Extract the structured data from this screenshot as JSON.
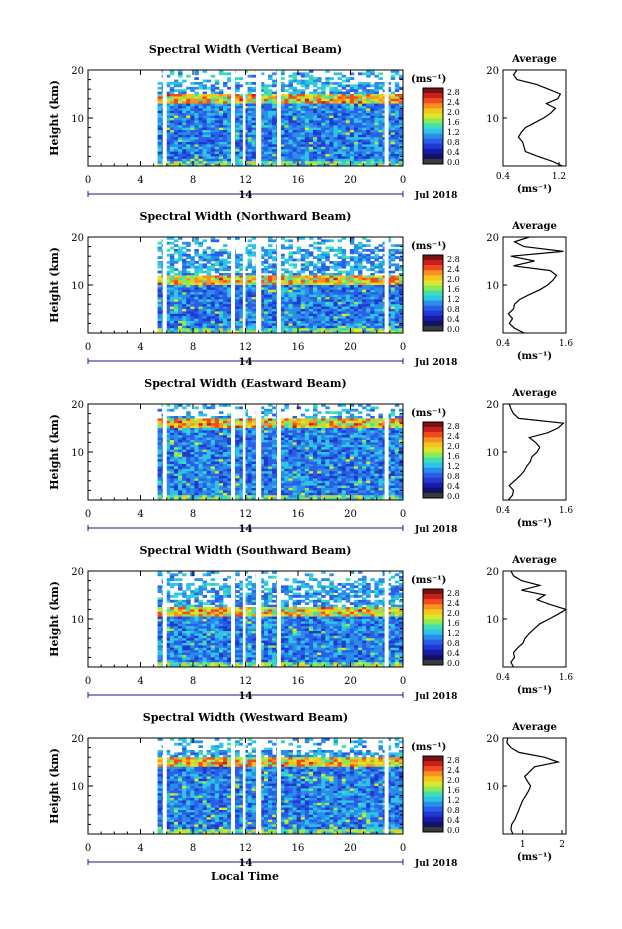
{
  "common": {
    "y_axis_label": "Height (km)",
    "x_axis_label": "Local Time",
    "date_label": "Jul 2018",
    "day_label": "14",
    "unit_label": "(ms⁻¹)",
    "average_title": "Average"
  },
  "colorbar": {
    "ticks": [
      "2.8",
      "2.4",
      "2.0",
      "1.6",
      "1.2",
      "0.8",
      "0.4",
      "0.0"
    ],
    "colors": [
      "#7a1010",
      "#c81e1e",
      "#f04a1e",
      "#f7901e",
      "#f5c51e",
      "#d9e82a",
      "#8ee85a",
      "#3fe0b0",
      "#2ec4e8",
      "#2a8ee8",
      "#2a5ee8",
      "#1e3ad0",
      "#1a1aa8",
      "#121266",
      "#3a3a3a"
    ]
  },
  "chart_data": [
    {
      "type": "heatmap",
      "title": "Spectral Width (Vertical Beam)",
      "x_ticks": [
        "0",
        "4",
        "8",
        "12",
        "16",
        "20",
        "0"
      ],
      "xlim": [
        0,
        24
      ],
      "y_ticks": [
        "20",
        "10"
      ],
      "ylim": [
        0,
        20
      ],
      "data_start_hour": 5.3,
      "gaps_hours": [
        [
          5.7,
          6.0
        ],
        [
          10.9,
          11.2
        ],
        [
          11.8,
          12.0
        ],
        [
          12.8,
          13.2
        ],
        [
          14.4,
          14.7
        ],
        [
          22.6,
          22.9
        ]
      ],
      "high_band_km": [
        13.5,
        14.5
      ],
      "average": {
        "x_ticks": [
          "0.4",
          "1.2"
        ],
        "xlim": [
          0.4,
          1.3
        ],
        "xlabel": "(ms⁻¹)",
        "ylim": [
          0,
          20
        ],
        "profile": [
          [
            1.25,
            0
          ],
          [
            1.1,
            1
          ],
          [
            0.9,
            2
          ],
          [
            0.72,
            3
          ],
          [
            0.7,
            4
          ],
          [
            0.68,
            5
          ],
          [
            0.62,
            6
          ],
          [
            0.66,
            7
          ],
          [
            0.72,
            8
          ],
          [
            0.85,
            9
          ],
          [
            0.98,
            10
          ],
          [
            1.08,
            11
          ],
          [
            1.15,
            12
          ],
          [
            1.02,
            13
          ],
          [
            1.18,
            14
          ],
          [
            1.22,
            15
          ],
          [
            1.05,
            16
          ],
          [
            0.88,
            17
          ],
          [
            0.6,
            18
          ],
          [
            0.55,
            19
          ],
          [
            0.6,
            20
          ]
        ]
      }
    },
    {
      "type": "heatmap",
      "title": "Spectral Width (Northward Beam)",
      "x_ticks": [
        "0",
        "4",
        "8",
        "12",
        "16",
        "20",
        "0"
      ],
      "xlim": [
        0,
        24
      ],
      "y_ticks": [
        "20",
        "10"
      ],
      "ylim": [
        0,
        20
      ],
      "data_start_hour": 5.3,
      "gaps_hours": [
        [
          5.7,
          6.0
        ],
        [
          10.9,
          11.2
        ],
        [
          11.8,
          12.0
        ],
        [
          12.8,
          13.2
        ],
        [
          14.4,
          14.7
        ],
        [
          22.6,
          22.9
        ]
      ],
      "high_band_km": [
        10.5,
        11.5
      ],
      "average": {
        "x_ticks": [
          "0.4",
          "1.6"
        ],
        "xlim": [
          0.4,
          1.6
        ],
        "xlabel": "(ms⁻¹)",
        "ylim": [
          0,
          20
        ],
        "profile": [
          [
            0.8,
            0
          ],
          [
            0.62,
            1
          ],
          [
            0.52,
            2
          ],
          [
            0.58,
            3
          ],
          [
            0.5,
            4
          ],
          [
            0.6,
            5
          ],
          [
            0.62,
            6
          ],
          [
            0.72,
            7
          ],
          [
            0.9,
            8
          ],
          [
            1.1,
            9
          ],
          [
            1.25,
            10
          ],
          [
            1.35,
            11
          ],
          [
            1.42,
            12
          ],
          [
            1.3,
            13
          ],
          [
            0.6,
            14
          ],
          [
            1.0,
            15
          ],
          [
            0.55,
            16
          ],
          [
            1.55,
            17
          ],
          [
            0.8,
            18
          ],
          [
            0.62,
            19
          ],
          [
            0.9,
            20
          ]
        ]
      }
    },
    {
      "type": "heatmap",
      "title": "Spectral Width (Eastward Beam)",
      "x_ticks": [
        "0",
        "4",
        "8",
        "12",
        "16",
        "20",
        "0"
      ],
      "xlim": [
        0,
        24
      ],
      "y_ticks": [
        "20",
        "10"
      ],
      "ylim": [
        0,
        20
      ],
      "data_start_hour": 5.3,
      "gaps_hours": [
        [
          5.7,
          6.0
        ],
        [
          10.9,
          11.2
        ],
        [
          11.8,
          12.0
        ],
        [
          12.8,
          13.2
        ],
        [
          14.4,
          14.7
        ],
        [
          22.6,
          22.9
        ]
      ],
      "high_band_km": [
        15.5,
        16.5
      ],
      "average": {
        "x_ticks": [
          "0.4",
          "1.6"
        ],
        "xlim": [
          0.4,
          1.6
        ],
        "xlabel": "(ms⁻¹)",
        "ylim": [
          0,
          20
        ],
        "profile": [
          [
            0.5,
            0
          ],
          [
            0.58,
            1
          ],
          [
            0.6,
            2
          ],
          [
            0.52,
            3
          ],
          [
            0.62,
            4
          ],
          [
            0.72,
            5
          ],
          [
            0.8,
            6
          ],
          [
            0.85,
            7
          ],
          [
            0.92,
            8
          ],
          [
            0.95,
            9
          ],
          [
            1.05,
            10
          ],
          [
            1.1,
            11
          ],
          [
            1.02,
            12
          ],
          [
            0.9,
            13
          ],
          [
            1.25,
            14
          ],
          [
            1.45,
            15
          ],
          [
            1.55,
            16
          ],
          [
            0.7,
            17
          ],
          [
            0.6,
            18
          ],
          [
            0.55,
            19
          ],
          [
            0.52,
            20
          ]
        ]
      }
    },
    {
      "type": "heatmap",
      "title": "Spectral Width (Southward Beam)",
      "x_ticks": [
        "0",
        "4",
        "8",
        "12",
        "16",
        "20",
        "0"
      ],
      "xlim": [
        0,
        24
      ],
      "y_ticks": [
        "20",
        "10"
      ],
      "ylim": [
        0,
        20
      ],
      "data_start_hour": 5.3,
      "gaps_hours": [
        [
          5.7,
          6.0
        ],
        [
          10.9,
          11.2
        ],
        [
          11.8,
          12.0
        ],
        [
          12.8,
          13.2
        ],
        [
          14.4,
          14.7
        ],
        [
          22.6,
          22.9
        ]
      ],
      "high_band_km": [
        11.0,
        12.0
      ],
      "average": {
        "x_ticks": [
          "0.4",
          "1.6"
        ],
        "xlim": [
          0.4,
          1.6
        ],
        "xlabel": "(ms⁻¹)",
        "ylim": [
          0,
          20
        ],
        "profile": [
          [
            0.6,
            0
          ],
          [
            0.55,
            1
          ],
          [
            0.62,
            2
          ],
          [
            0.6,
            3
          ],
          [
            0.68,
            4
          ],
          [
            0.78,
            5
          ],
          [
            0.82,
            6
          ],
          [
            0.9,
            7
          ],
          [
            1.0,
            8
          ],
          [
            1.1,
            9
          ],
          [
            1.28,
            10
          ],
          [
            1.45,
            11
          ],
          [
            1.6,
            12
          ],
          [
            1.3,
            13
          ],
          [
            1.05,
            14
          ],
          [
            1.2,
            15
          ],
          [
            0.75,
            16
          ],
          [
            1.1,
            17
          ],
          [
            0.75,
            18
          ],
          [
            0.6,
            19
          ],
          [
            0.55,
            20
          ]
        ]
      }
    },
    {
      "type": "heatmap",
      "title": "Spectral Width (Westward Beam)",
      "x_ticks": [
        "0",
        "4",
        "8",
        "12",
        "16",
        "20",
        "0"
      ],
      "xlim": [
        0,
        24
      ],
      "y_ticks": [
        "20",
        "10"
      ],
      "ylim": [
        0,
        20
      ],
      "data_start_hour": 5.3,
      "gaps_hours": [
        [
          5.7,
          6.0
        ],
        [
          10.9,
          11.2
        ],
        [
          11.8,
          12.0
        ],
        [
          12.8,
          13.2
        ],
        [
          14.4,
          14.7
        ],
        [
          22.6,
          22.9
        ]
      ],
      "high_band_km": [
        14.5,
        15.5
      ],
      "average": {
        "x_ticks": [
          "1",
          "2"
        ],
        "xlim": [
          0.5,
          2.1
        ],
        "xlabel": "(ms⁻¹)",
        "ylim": [
          0,
          20
        ],
        "profile": [
          [
            0.75,
            0
          ],
          [
            0.7,
            1
          ],
          [
            0.72,
            2
          ],
          [
            0.8,
            3
          ],
          [
            0.85,
            4
          ],
          [
            0.9,
            5
          ],
          [
            0.95,
            6
          ],
          [
            1.0,
            7
          ],
          [
            1.08,
            8
          ],
          [
            1.15,
            9
          ],
          [
            1.2,
            10
          ],
          [
            1.12,
            11
          ],
          [
            1.05,
            12
          ],
          [
            1.18,
            13
          ],
          [
            1.3,
            14
          ],
          [
            1.9,
            15
          ],
          [
            1.55,
            16
          ],
          [
            0.9,
            17
          ],
          [
            0.7,
            18
          ],
          [
            0.6,
            19
          ],
          [
            0.62,
            20
          ]
        ]
      }
    }
  ]
}
